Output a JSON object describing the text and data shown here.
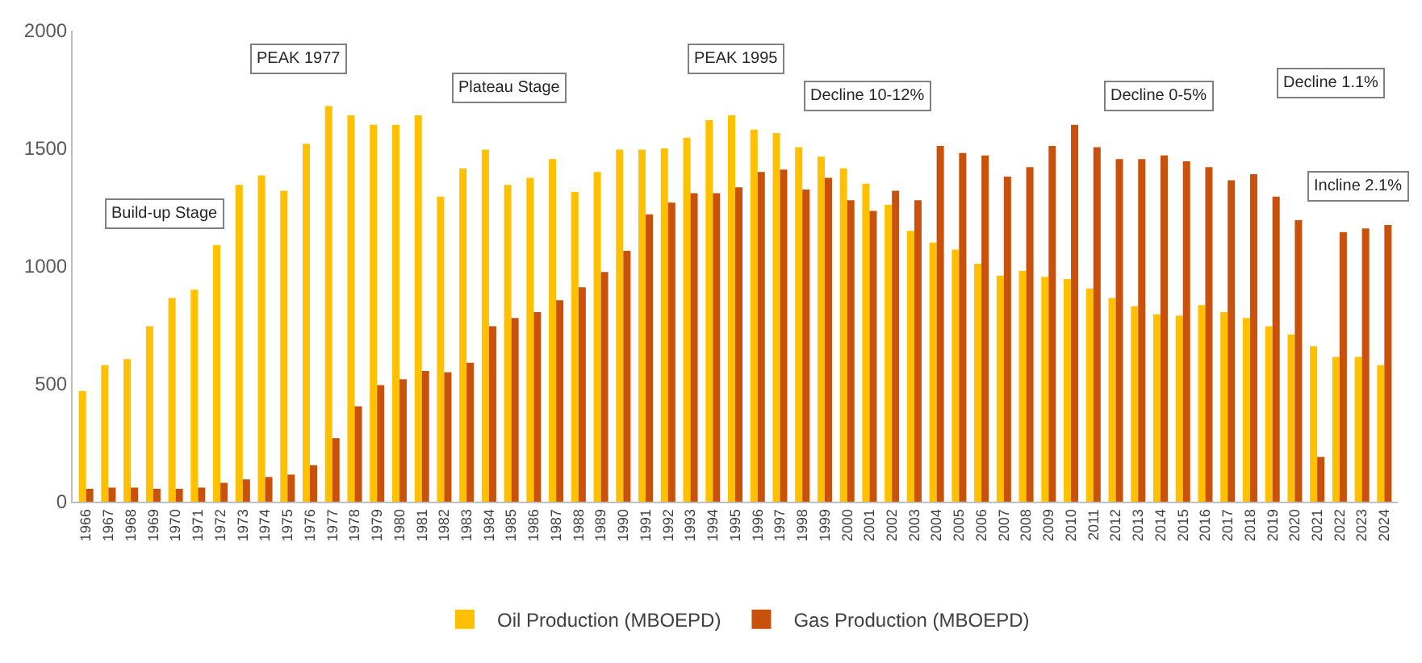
{
  "chart_data": {
    "type": "bar",
    "categories": [
      "1966",
      "1967",
      "1968",
      "1969",
      "1970",
      "1971",
      "1972",
      "1973",
      "1974",
      "1975",
      "1976",
      "1977",
      "1978",
      "1979",
      "1980",
      "1981",
      "1982",
      "1983",
      "1984",
      "1985",
      "1986",
      "1987",
      "1988",
      "1989",
      "1990",
      "1991",
      "1992",
      "1993",
      "1994",
      "1995",
      "1996",
      "1997",
      "1998",
      "1999",
      "2000",
      "2001",
      "2002",
      "2003",
      "2004",
      "2005",
      "2006",
      "2007",
      "2008",
      "2009",
      "2010",
      "2011",
      "2012",
      "2013",
      "2014",
      "2015",
      "2016",
      "2017",
      "2018",
      "2019",
      "2020",
      "2021",
      "2022",
      "2023",
      "2024"
    ],
    "series": [
      {
        "name": "Oil Production (MBOEPD)",
        "color": "#ffc000",
        "values": [
          470,
          580,
          605,
          745,
          865,
          900,
          1090,
          1345,
          1385,
          1320,
          1520,
          1680,
          1640,
          1600,
          1600,
          1640,
          1295,
          1415,
          1495,
          1345,
          1375,
          1455,
          1315,
          1400,
          1495,
          1495,
          1500,
          1545,
          1620,
          1640,
          1580,
          1565,
          1505,
          1465,
          1415,
          1350,
          1260,
          1150,
          1100,
          1070,
          1010,
          960,
          980,
          955,
          945,
          905,
          865,
          830,
          795,
          790,
          835,
          805,
          780,
          745,
          710,
          660,
          615,
          615,
          580
        ]
      },
      {
        "name": "Gas Production (MBOEPD)",
        "color": "#c9510c",
        "values": [
          55,
          60,
          60,
          55,
          55,
          60,
          80,
          95,
          105,
          115,
          155,
          270,
          405,
          495,
          520,
          555,
          550,
          590,
          745,
          780,
          805,
          855,
          910,
          975,
          1065,
          1220,
          1270,
          1310,
          1310,
          1335,
          1400,
          1410,
          1325,
          1375,
          1280,
          1235,
          1320,
          1280,
          1510,
          1480,
          1470,
          1380,
          1420,
          1510,
          1600,
          1505,
          1455,
          1455,
          1470,
          1445,
          1420,
          1365,
          1390,
          1295,
          1195,
          190,
          1145,
          1160,
          1175
        ]
      }
    ],
    "ylim": [
      0,
      2000
    ],
    "yticks": [
      0,
      500,
      1000,
      1500,
      2000
    ],
    "legend": "bottom",
    "annotations": [
      "Build-up Stage",
      "PEAK 1977",
      "Plateau Stage",
      "PEAK 1995",
      "Decline 10-12%",
      "Decline 0-5%",
      "Decline 1.1%",
      "Incline 2.1%"
    ]
  }
}
